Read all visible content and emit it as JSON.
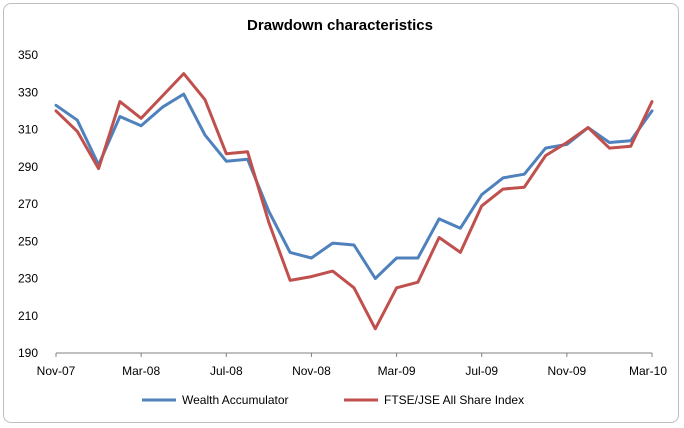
{
  "chart_data": {
    "type": "line",
    "title": "Drawdown characteristics",
    "xlabel": "",
    "ylabel": "",
    "ylim": [
      190,
      350
    ],
    "yticks": [
      190,
      210,
      230,
      250,
      270,
      290,
      310,
      330,
      350
    ],
    "x": [
      "Nov-07",
      "Dec-07",
      "Jan-08",
      "Feb-08",
      "Mar-08",
      "Apr-08",
      "May-08",
      "Jun-08",
      "Jul-08",
      "Aug-08",
      "Sep-08",
      "Oct-08",
      "Nov-08",
      "Dec-08",
      "Jan-09",
      "Feb-09",
      "Mar-09",
      "Apr-09",
      "May-09",
      "Jun-09",
      "Jul-09",
      "Aug-09",
      "Sep-09",
      "Oct-09",
      "Nov-09",
      "Dec-09",
      "Jan-10",
      "Feb-10",
      "Mar-10"
    ],
    "xtick_labels": [
      "Nov-07",
      "Mar-08",
      "Jul-08",
      "Nov-08",
      "Mar-09",
      "Jul-09",
      "Nov-09",
      "Mar-10"
    ],
    "grid": false,
    "legend_position": "bottom",
    "series": [
      {
        "name": "Wealth Accumulator",
        "color": "#4f81bd",
        "values": [
          323,
          315,
          291,
          317,
          312,
          322,
          329,
          307,
          293,
          294,
          266,
          244,
          241,
          249,
          248,
          230,
          241,
          241,
          262,
          257,
          275,
          284,
          286,
          300,
          302,
          311,
          303,
          304,
          320
        ]
      },
      {
        "name": "FTSE/JSE All Share Index",
        "color": "#c0504d",
        "values": [
          320,
          309,
          289,
          325,
          316,
          328,
          340,
          326,
          297,
          298,
          260,
          229,
          231,
          234,
          225,
          203,
          225,
          228,
          252,
          244,
          269,
          278,
          279,
          296,
          303,
          311,
          300,
          301,
          325
        ]
      }
    ]
  }
}
